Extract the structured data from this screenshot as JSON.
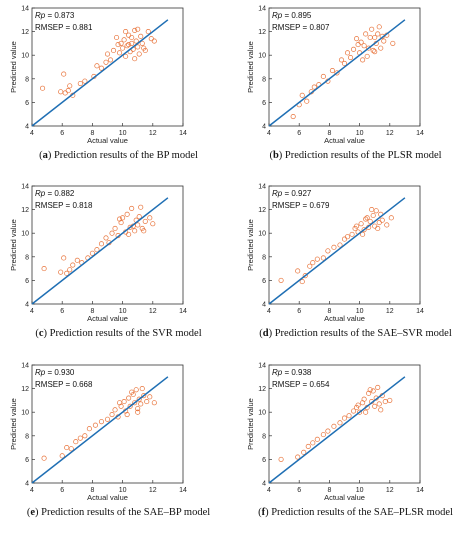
{
  "colors": {
    "fit_line": "#1f6fb4",
    "marker": "#e8733a",
    "axis": "#333333"
  },
  "chart_data": [
    {
      "type": "scatter",
      "panel_label": "a",
      "caption": "Prediction results of the BP model",
      "rp_label": "Rp",
      "rp_value": "0.873",
      "rmsep_label": "RMSEP",
      "rmsep_value": "0.881",
      "xlabel": "Actual value",
      "ylabel": "Predicted value",
      "xlim": [
        4,
        14
      ],
      "ylim": [
        4,
        14
      ],
      "xticks": [
        "4",
        "6",
        "8",
        "10",
        "12",
        "14"
      ],
      "yticks": [
        "4",
        "6",
        "8",
        "10",
        "12",
        "14"
      ],
      "line": {
        "x": [
          4,
          13
        ],
        "y": [
          4,
          13
        ]
      },
      "series": [
        {
          "x": [
            4.7,
            5.9,
            6.1,
            6.2,
            6.4,
            6.5,
            6.7,
            7.2,
            7.5,
            8.1,
            8.3,
            8.6,
            8.9,
            9.0,
            9.2,
            9.4,
            9.6,
            9.8,
            9.9,
            10.0,
            10.1,
            10.2,
            10.3,
            10.4,
            10.5,
            10.6,
            10.7,
            10.8,
            10.9,
            11.0,
            11.1,
            11.2,
            11.3,
            11.5,
            11.7,
            11.9,
            10.2,
            10.8,
            11.0,
            10.4,
            10.6,
            9.7,
            11.4,
            12.1
          ],
          "y": [
            7.2,
            6.9,
            8.4,
            6.8,
            7.0,
            7.4,
            6.6,
            7.6,
            7.8,
            8.2,
            9.1,
            8.9,
            9.4,
            10.1,
            9.6,
            10.4,
            11.5,
            10.2,
            11.0,
            10.6,
            11.3,
            9.9,
            10.8,
            11.7,
            10.3,
            11.0,
            10.5,
            12.1,
            11.2,
            10.7,
            10.1,
            11.6,
            11.0,
            10.4,
            12.0,
            11.4,
            12.0,
            9.7,
            12.2,
            10.9,
            11.5,
            10.9,
            10.6,
            11.2
          ]
        }
      ]
    },
    {
      "type": "scatter",
      "panel_label": "b",
      "caption": "Prediction results of the PLSR model",
      "rp_label": "Rp",
      "rp_value": "0.895",
      "rmsep_label": "RMSEP",
      "rmsep_value": "0.807",
      "xlabel": "Actual value",
      "ylabel": "Predicted value",
      "xlim": [
        4,
        14
      ],
      "ylim": [
        4,
        14
      ],
      "xticks": [
        "4",
        "6",
        "8",
        "10",
        "12",
        "14"
      ],
      "yticks": [
        "4",
        "6",
        "8",
        "10",
        "12",
        "14"
      ],
      "line": {
        "x": [
          4,
          13
        ],
        "y": [
          4,
          13
        ]
      },
      "series": [
        {
          "x": [
            5.6,
            6.0,
            6.2,
            6.5,
            6.8,
            7.0,
            7.3,
            7.6,
            7.9,
            8.2,
            8.5,
            8.8,
            9.0,
            9.2,
            9.4,
            9.6,
            9.8,
            10.0,
            10.1,
            10.3,
            10.4,
            10.5,
            10.6,
            10.8,
            10.9,
            11.0,
            11.1,
            11.2,
            11.4,
            11.6,
            11.8,
            12.2,
            10.2,
            10.7,
            11.0,
            9.9,
            11.3,
            11.5
          ],
          "y": [
            4.8,
            5.8,
            6.6,
            6.1,
            6.9,
            7.3,
            7.5,
            8.2,
            7.8,
            8.7,
            8.5,
            9.6,
            9.3,
            10.2,
            9.8,
            10.5,
            11.4,
            10.2,
            11.1,
            10.8,
            11.8,
            9.9,
            10.6,
            12.2,
            10.4,
            11.5,
            11.0,
            11.8,
            10.6,
            11.2,
            11.7,
            11.0,
            9.6,
            11.5,
            10.3,
            10.9,
            12.4,
            11.6
          ]
        }
      ]
    },
    {
      "type": "scatter",
      "panel_label": "c",
      "caption": "Prediction results of the SVR model",
      "rp_label": "Rp",
      "rp_value": "0.882",
      "rmsep_label": "RMSEP",
      "rmsep_value": "0.818",
      "xlabel": "Actual value",
      "ylabel": "Predicted value",
      "xlim": [
        4,
        14
      ],
      "ylim": [
        4,
        14
      ],
      "xticks": [
        "4",
        "6",
        "8",
        "10",
        "12",
        "14"
      ],
      "yticks": [
        "4",
        "6",
        "8",
        "10",
        "12",
        "14"
      ],
      "line": {
        "x": [
          4,
          13
        ],
        "y": [
          4,
          13
        ]
      },
      "series": [
        {
          "x": [
            4.8,
            5.9,
            6.1,
            6.3,
            6.5,
            6.7,
            7.0,
            7.3,
            7.7,
            8.0,
            8.3,
            8.6,
            8.9,
            9.1,
            9.3,
            9.5,
            9.7,
            9.9,
            10.0,
            10.2,
            10.3,
            10.5,
            10.6,
            10.8,
            10.9,
            11.0,
            11.1,
            11.3,
            11.5,
            11.8,
            12.0,
            10.4,
            10.7,
            9.8,
            11.2,
            11.4
          ],
          "y": [
            7.0,
            6.7,
            7.9,
            6.6,
            6.9,
            7.3,
            7.7,
            7.5,
            7.9,
            8.3,
            8.6,
            9.1,
            9.6,
            9.2,
            10.0,
            10.4,
            9.8,
            10.9,
            11.3,
            10.1,
            11.6,
            10.5,
            12.1,
            10.2,
            11.1,
            10.7,
            11.4,
            10.4,
            11.0,
            11.3,
            10.8,
            9.9,
            10.6,
            11.2,
            12.2,
            10.2
          ]
        }
      ]
    },
    {
      "type": "scatter",
      "panel_label": "d",
      "caption": "Prediction results of the SAE–SVR model",
      "rp_label": "Rp",
      "rp_value": "0.927",
      "rmsep_label": "RMSEP",
      "rmsep_value": "0.679",
      "xlabel": "Actual value",
      "ylabel": "Predicted value",
      "xlim": [
        4,
        14
      ],
      "ylim": [
        4,
        14
      ],
      "xticks": [
        "4",
        "6",
        "8",
        "10",
        "12",
        "14"
      ],
      "yticks": [
        "4",
        "6",
        "8",
        "10",
        "12",
        "14"
      ],
      "line": {
        "x": [
          4,
          13
        ],
        "y": [
          4,
          13
        ]
      },
      "series": [
        {
          "x": [
            4.8,
            5.9,
            6.2,
            6.4,
            6.7,
            6.9,
            7.2,
            7.6,
            7.9,
            8.3,
            8.7,
            9.0,
            9.2,
            9.5,
            9.7,
            9.9,
            10.1,
            10.3,
            10.4,
            10.6,
            10.7,
            10.9,
            11.0,
            11.1,
            11.3,
            11.5,
            11.8,
            12.1,
            10.2,
            10.8,
            11.2,
            11.4,
            10.5,
            9.8
          ],
          "y": [
            6.0,
            6.8,
            5.9,
            6.4,
            7.2,
            7.5,
            7.8,
            7.9,
            8.5,
            8.8,
            9.0,
            9.5,
            9.7,
            9.9,
            10.4,
            10.1,
            10.8,
            10.3,
            11.2,
            10.5,
            11.0,
            11.5,
            10.6,
            11.9,
            10.9,
            11.1,
            10.7,
            11.3,
            9.9,
            12.0,
            10.4,
            11.6,
            11.3,
            10.6
          ]
        }
      ]
    },
    {
      "type": "scatter",
      "panel_label": "e",
      "caption": "Prediction results of the SAE–BP model",
      "rp_label": "Rp",
      "rp_value": "0.930",
      "rmsep_label": "RMSEP",
      "rmsep_value": "0.668",
      "xlabel": "Actual value",
      "ylabel": "Predicted value",
      "xlim": [
        4,
        14
      ],
      "ylim": [
        4,
        14
      ],
      "xticks": [
        "4",
        "6",
        "8",
        "10",
        "12",
        "14"
      ],
      "yticks": [
        "4",
        "6",
        "8",
        "10",
        "12",
        "14"
      ],
      "line": {
        "x": [
          4,
          13
        ],
        "y": [
          4,
          13
        ]
      },
      "series": [
        {
          "x": [
            4.8,
            6.0,
            6.3,
            6.6,
            6.9,
            7.2,
            7.5,
            7.8,
            8.2,
            8.6,
            9.0,
            9.3,
            9.5,
            9.7,
            9.9,
            10.1,
            10.2,
            10.4,
            10.5,
            10.7,
            10.8,
            10.9,
            11.0,
            11.1,
            11.2,
            11.4,
            11.6,
            11.8,
            12.1,
            10.3,
            10.6,
            11.3,
            9.8,
            11.0
          ],
          "y": [
            6.1,
            6.3,
            7.0,
            6.9,
            7.5,
            7.8,
            8.0,
            8.6,
            8.9,
            9.2,
            9.4,
            9.8,
            10.2,
            9.6,
            10.5,
            10.9,
            10.1,
            11.2,
            10.5,
            11.5,
            10.8,
            11.9,
            10.3,
            11.1,
            10.7,
            11.4,
            10.9,
            11.3,
            10.8,
            9.8,
            11.7,
            12.0,
            10.8,
            10.0
          ]
        }
      ]
    },
    {
      "type": "scatter",
      "panel_label": "f",
      "caption": "Prediction results of the SAE–PLSR model",
      "rp_label": "Rp",
      "rp_value": "0.938",
      "rmsep_label": "RMSEP",
      "rmsep_value": "0.654",
      "xlabel": "Actual value",
      "ylabel": "Predicted value",
      "xlim": [
        4,
        14
      ],
      "ylim": [
        4,
        14
      ],
      "xticks": [
        "4",
        "6",
        "8",
        "10",
        "12",
        "14"
      ],
      "yticks": [
        "4",
        "6",
        "8",
        "10",
        "12",
        "14"
      ],
      "line": {
        "x": [
          4,
          13
        ],
        "y": [
          4,
          13
        ]
      },
      "series": [
        {
          "x": [
            4.8,
            5.9,
            6.3,
            6.6,
            6.9,
            7.2,
            7.6,
            7.9,
            8.3,
            8.7,
            9.0,
            9.3,
            9.6,
            9.8,
            10.0,
            10.2,
            10.3,
            10.5,
            10.6,
            10.8,
            10.9,
            11.0,
            11.1,
            11.3,
            11.5,
            11.7,
            12.0,
            10.4,
            10.7,
            11.2,
            9.9,
            11.4
          ],
          "y": [
            6.0,
            6.2,
            6.6,
            7.1,
            7.4,
            7.7,
            8.1,
            8.4,
            8.8,
            9.1,
            9.5,
            9.7,
            10.1,
            10.4,
            10.0,
            10.8,
            11.1,
            10.4,
            11.6,
            10.9,
            11.8,
            10.5,
            11.2,
            10.7,
            11.4,
            10.9,
            11.0,
            10.0,
            11.9,
            12.1,
            10.6,
            10.2
          ]
        }
      ]
    }
  ]
}
